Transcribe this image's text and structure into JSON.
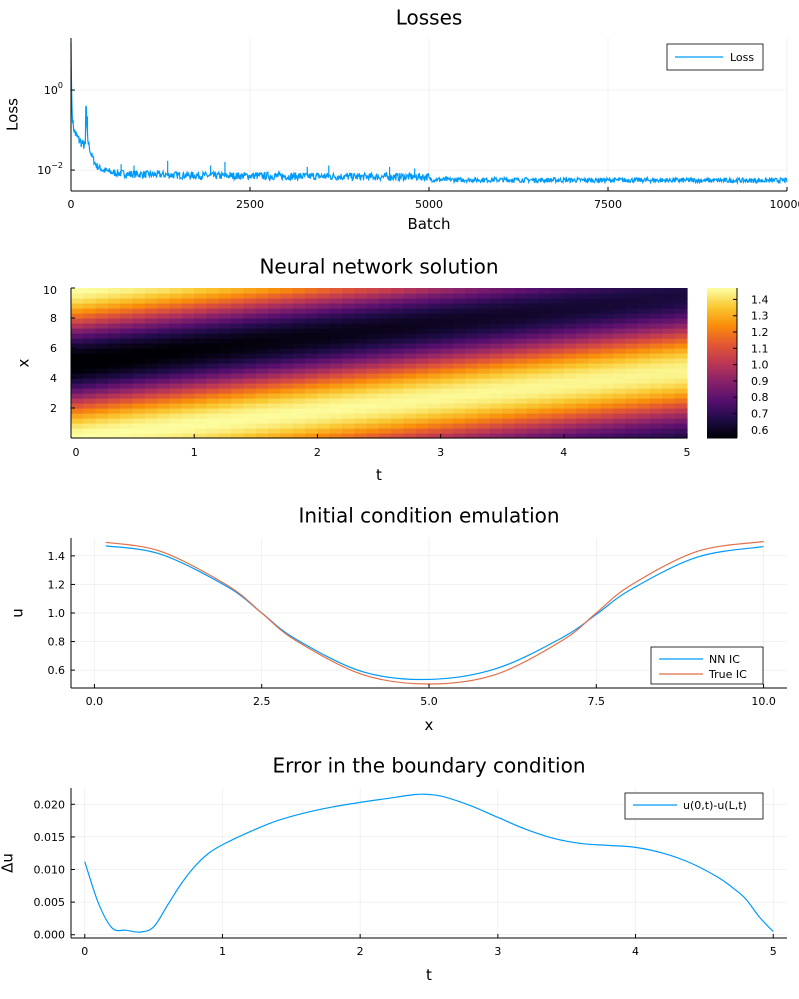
{
  "chart_data": [
    {
      "type": "line",
      "title": "Losses",
      "xlabel": "Batch",
      "ylabel": "Loss",
      "yscale": "log",
      "xlim": [
        0,
        10000
      ],
      "ylim": [
        0.003,
        20
      ],
      "xticks": [
        0,
        2500,
        5000,
        7500,
        10000
      ],
      "xtick_labels": [
        "0",
        "2500",
        "5000",
        "7500",
        "10000"
      ],
      "yticks": [
        1,
        0.01
      ],
      "ytick_base": [
        "10",
        "10"
      ],
      "ytick_exp": [
        "0",
        "−2"
      ],
      "grid": true,
      "legend": "top-right",
      "colors": {
        "Loss": "#009AFA"
      },
      "series": [
        {
          "name": "Loss",
          "x": [
            0,
            10,
            25,
            50,
            80,
            120,
            160,
            200,
            210,
            220,
            240,
            280,
            350,
            450,
            600,
            800,
            1000,
            1500,
            2000,
            2500,
            3000,
            3500,
            4000,
            4500,
            4990,
            5010,
            5500,
            6000,
            7000,
            8000,
            9000,
            10000
          ],
          "y": [
            15,
            0.5,
            0.15,
            0.09,
            0.07,
            0.055,
            0.045,
            0.04,
            0.9,
            0.1,
            0.05,
            0.025,
            0.013,
            0.01,
            0.0085,
            0.008,
            0.0078,
            0.0075,
            0.0072,
            0.0072,
            0.007,
            0.007,
            0.0068,
            0.0068,
            0.0068,
            0.0058,
            0.0057,
            0.0057,
            0.0056,
            0.0056,
            0.0055,
            0.0055
          ],
          "noise_points": 1400,
          "spikes": [
            [
              230,
              0.22
            ],
            [
              700,
              0.014
            ],
            [
              880,
              0.013
            ],
            [
              1350,
              0.017
            ],
            [
              1950,
              0.013
            ],
            [
              2150,
              0.016
            ],
            [
              3300,
              0.012
            ],
            [
              3600,
              0.013
            ],
            [
              4450,
              0.012
            ],
            [
              4800,
              0.011
            ]
          ]
        }
      ]
    },
    {
      "type": "heatmap",
      "title": "Neural network solution",
      "xlabel": "t",
      "ylabel": "x",
      "xlim": [
        0,
        5
      ],
      "ylim": [
        0,
        10
      ],
      "xticks": [
        0,
        1,
        2,
        3,
        4,
        5
      ],
      "yticks": [
        2,
        4,
        6,
        8,
        10
      ],
      "nx": 50,
      "ny": 30,
      "field": "u(t,x) = 1 + 0.47*cos(2*pi*(x - 0.9*t)/10) + 0.01*t",
      "amplitude_decay": [
        0.47,
        0.4
      ],
      "colorbar": {
        "min": 0.55,
        "max": 1.47,
        "ticks": [
          0.6,
          0.7,
          0.8,
          0.9,
          1.0,
          1.1,
          1.2,
          1.3,
          1.4
        ],
        "tick_labels": [
          "0.6",
          "0.7",
          "0.8",
          "0.9",
          "1.0",
          "1.1",
          "1.2",
          "1.3",
          "1.4"
        ],
        "colormap": "inferno"
      }
    },
    {
      "type": "line",
      "title": "Initial condition emulation",
      "xlabel": "x",
      "ylabel": "u",
      "xlim": [
        -0.35,
        10.35
      ],
      "ylim": [
        0.475,
        1.525
      ],
      "xticks": [
        0,
        2.5,
        5,
        7.5,
        10
      ],
      "xtick_labels": [
        "0.0",
        "2.5",
        "5.0",
        "7.5",
        "10.0"
      ],
      "yticks": [
        0.6,
        0.8,
        1.0,
        1.2,
        1.4
      ],
      "ytick_labels": [
        "0.6",
        "0.8",
        "1.0",
        "1.2",
        "1.4"
      ],
      "grid": true,
      "legend": "bottom-right",
      "colors": {
        "NN IC": "#009AFA",
        "True IC": "#E26F46"
      },
      "series": [
        {
          "name": "NN IC",
          "x": [
            0.17,
            1,
            2,
            2.5,
            3,
            4,
            5,
            6,
            7,
            7.5,
            8,
            9,
            10
          ],
          "y": [
            1.47,
            1.41,
            1.18,
            1.0,
            0.82,
            0.59,
            0.535,
            0.61,
            0.83,
            0.99,
            1.16,
            1.39,
            1.465
          ]
        },
        {
          "name": "True IC",
          "x": [
            0.17,
            1,
            2,
            2.5,
            3,
            4,
            5,
            6,
            7,
            7.5,
            8,
            9,
            10
          ],
          "y": [
            1.495,
            1.43,
            1.19,
            1.0,
            0.81,
            0.57,
            0.503,
            0.57,
            0.81,
            1.0,
            1.19,
            1.43,
            1.5
          ]
        }
      ]
    },
    {
      "type": "line",
      "title": "Error in the boundary condition",
      "xlabel": "t",
      "ylabel": "Δu",
      "xlim": [
        -0.1,
        5.1
      ],
      "ylim": [
        -0.0005,
        0.0225
      ],
      "xticks": [
        0,
        1,
        2,
        3,
        4,
        5
      ],
      "yticks": [
        0,
        0.005,
        0.01,
        0.015,
        0.02
      ],
      "ytick_labels": [
        "0.000",
        "0.005",
        "0.010",
        "0.015",
        "0.020"
      ],
      "grid": true,
      "legend": "top-right",
      "colors": {
        "u(0,t)-u(L,t)": "#009AFA"
      },
      "series": [
        {
          "name": "u(0,t)-u(L,t)",
          "x": [
            0,
            0.1,
            0.2,
            0.3,
            0.4,
            0.5,
            0.6,
            0.7,
            0.8,
            0.9,
            1.0,
            1.2,
            1.4,
            1.6,
            1.8,
            2.0,
            2.2,
            2.4,
            2.5,
            2.6,
            2.8,
            3.0,
            3.2,
            3.4,
            3.6,
            3.8,
            4.0,
            4.2,
            4.4,
            4.6,
            4.7,
            4.8,
            4.9,
            5.0
          ],
          "y": [
            0.0112,
            0.0048,
            0.001,
            0.0007,
            0.0004,
            0.0012,
            0.0045,
            0.0078,
            0.0105,
            0.0125,
            0.0138,
            0.0158,
            0.0175,
            0.0187,
            0.0196,
            0.0203,
            0.0209,
            0.0215,
            0.0215,
            0.0212,
            0.0198,
            0.018,
            0.0162,
            0.0148,
            0.014,
            0.0137,
            0.0134,
            0.0125,
            0.011,
            0.0088,
            0.0073,
            0.0055,
            0.0027,
            0.0005
          ]
        }
      ]
    }
  ]
}
